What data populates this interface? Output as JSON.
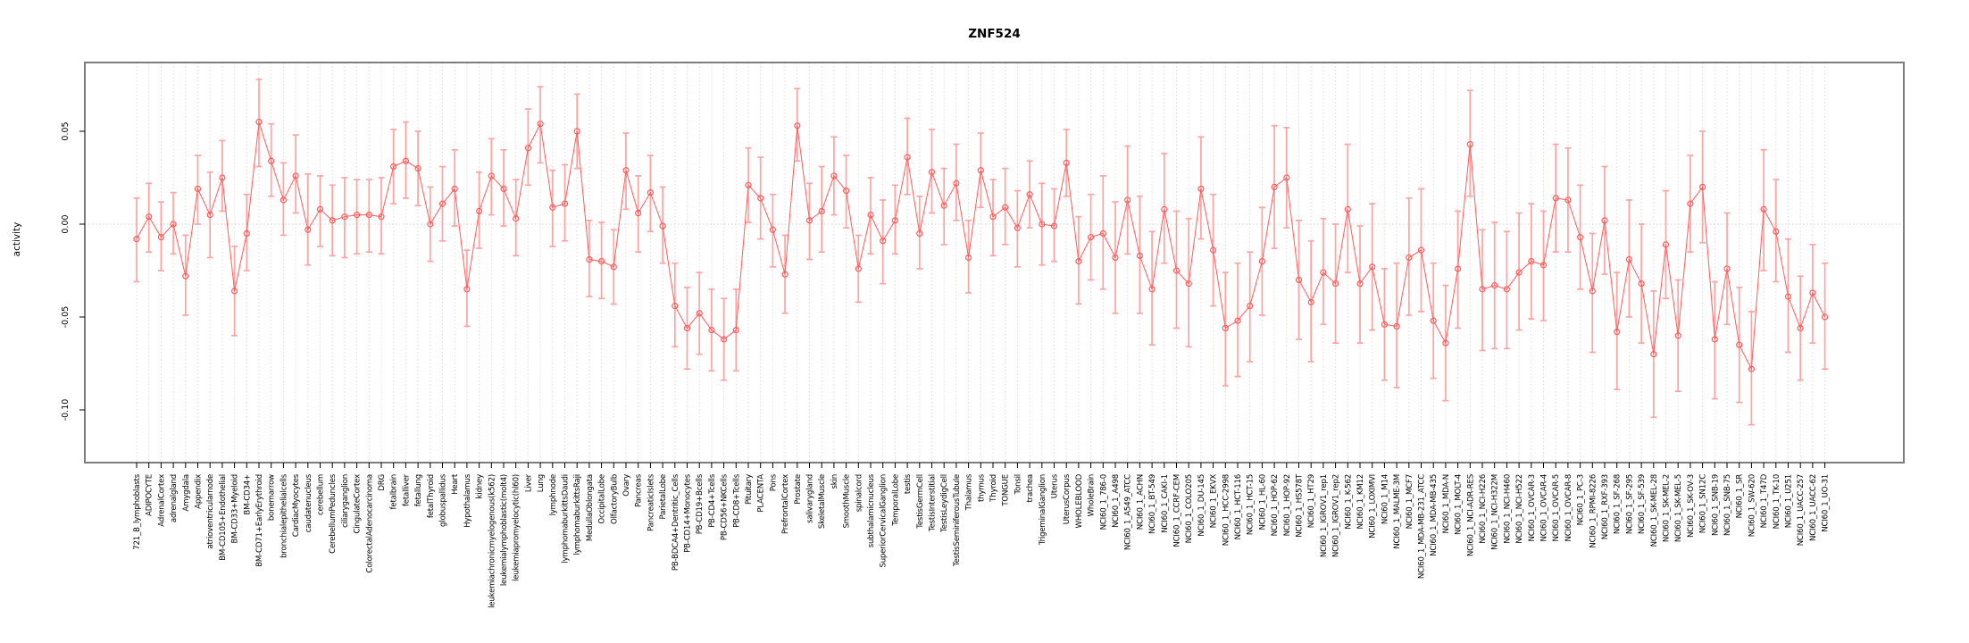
{
  "page": {
    "title": "ZNF524"
  },
  "chart_data": {
    "type": "line",
    "title": "ZNF524",
    "xlabel": "",
    "ylabel": "activity",
    "legend": "none",
    "grid": "vertical dotted line per category; horizontal dotted line at 0",
    "marker": "open-circle-with-error-bars",
    "ylim": [
      -0.128,
      0.087
    ],
    "yticks": [
      0.05,
      0.0,
      -0.05,
      -0.1
    ],
    "ytick_labels": [
      "0.05",
      "0.00",
      "-0.05",
      "-0.10"
    ],
    "colors": {
      "series": "#ff5b5b",
      "error_bars": "#ff9a9a",
      "grid": "#dcdcdc",
      "zero_line": "#cfcfcf",
      "box": "#7d7d7d",
      "tick": "#000000",
      "text": "#000000",
      "background": "#ffffff"
    },
    "categories": [
      "721_B_lymphoblasts",
      "ADIPOCYTE",
      "AdrenalCortex",
      "adrenalgland",
      "Amygdala",
      "Appendix",
      "atrioventricularnode",
      "BM-CD105+Endothelial",
      "BM-CD33+Myeloid",
      "BM-CD34+",
      "BM-CD71+EarlyErythroid",
      "bonemarrow",
      "bronchialepithelialcells",
      "CardiacMyocytes",
      "caudatenucleus",
      "cerebellum",
      "CerebellumPeduncles",
      "ciliaryganglion",
      "CingulateCortex",
      "ColorectalAdenocarcinoma",
      "DRG",
      "fetalbrain",
      "fetalliver",
      "fetallung",
      "fetalThyroid",
      "globuspallidus",
      "Heart",
      "Hypothalamus",
      "kidney",
      "leukemiachronicmyelogenous(k562)",
      "leukemialymphoblastic(molt4)",
      "leukemiapromyelocytic(hl60)",
      "Liver",
      "Lung",
      "lymphnode",
      "lymphomaburkittsDaudi",
      "lymphomaburkittsRaji",
      "MedullaOblongata",
      "OccipitalLobe",
      "OlfactoryBulb",
      "Ovary",
      "Pancreas",
      "PancreaticIslets",
      "ParietalLobe",
      "PB-BDCA4+Dentritic_Cells",
      "PB-CD14+Monocytes",
      "PB-CD19+Bcells",
      "PB-CD4+Tcells",
      "PB-CD56+NKCells",
      "PB-CD8+Tcells",
      "Pituitary",
      "PLACENTA",
      "Pons",
      "PrefrontalCortex",
      "Prostate",
      "salivarygland",
      "SkeletalMuscle",
      "skin",
      "SmoothMuscle",
      "spinalcord",
      "subthalamicnucleus",
      "SuperiorCervicalGanglion",
      "TemporalLobe",
      "testis",
      "TestisGermCell",
      "TestisInterstitial",
      "TestisLeydigCell",
      "TestisSeminiferousTubule",
      "Thalamus",
      "thymus",
      "Thyroid",
      "TONGUE",
      "Tonsil",
      "trachea",
      "TrigeminalGanglion",
      "Uterus",
      "UterusCorpus",
      "WHOLEBLOOD",
      "WholeBrain",
      "NCI60_1_786-0",
      "NCI60_1_A498",
      "NCI60_1_A549_ATCC",
      "NCI60_1_ACHN",
      "NCI60_1_BT-549",
      "NCI60_1_CAKI-1",
      "NCI60_1_CCRF-CEM",
      "NCI60_1_COLO205",
      "NCI60_1_DU-145",
      "NCI60_1_EKVX",
      "NCI60_1_HCC-2998",
      "NCI60_1_HCT-116",
      "NCI60_1_HCT-15",
      "NCI60_1_HL-60",
      "NCI60_1_HOP-62",
      "NCI60_1_HOP-92",
      "NCI60_1_HS578T",
      "NCI60_1_HT29",
      "NCI60_1_IGROV1_rep1",
      "NCI60_1_IGROV1_rep2",
      "NCI60_1_K-562",
      "NCI60_1_KM12",
      "NCI60_1_LOXIMVI",
      "NCI60_1_M14",
      "NCI60_1_MALME-3M",
      "NCI60_1_MCF7",
      "NCI60_1_MDA-MB-231_ATCC",
      "NCI60_1_MDA-MB-435",
      "NCI60_1_MDA-N",
      "NCI60_1_MOLT-4",
      "NCI60_1_NCI-ADR-RES",
      "NCI60_1_NCI-H226",
      "NCI60_1_NCI-H322M",
      "NCI60_1_NCI-H460",
      "NCI60_1_NCI-H522",
      "NCI60_1_OVCAR-3",
      "NCI60_1_OVCAR-4",
      "NCI60_1_OVCAR-5",
      "NCI60_1_OVCAR-8",
      "NCI60_1_PC-3",
      "NCI60_1_RPMI-8226",
      "NCI60_1_RXF-393",
      "NCI60_1_SF-268",
      "NCI60_1_SF-295",
      "NCI60_1_SF-539",
      "NCI60_1_SK-MEL-28",
      "NCI60_1_SK-MEL-2",
      "NCI60_1_SK-MEL-5",
      "NCI60_1_SK-OV-3",
      "NCI60_1_SN12C",
      "NCI60_1_SNB-19",
      "NCI60_1_SNB-75",
      "NCI60_1_SR",
      "NCI60_1_SW-620",
      "NCI60_1_T47D",
      "NCI60_1_TK-10",
      "NCI60_1_U251",
      "NCI60_1_UACC-257",
      "NCI60_1_UACC-62",
      "NCI60_1_UO-31"
    ],
    "series": [
      {
        "name": "activity",
        "values": [
          -0.008,
          0.004,
          -0.007,
          0.0,
          -0.028,
          0.019,
          0.005,
          0.025,
          -0.036,
          -0.005,
          0.055,
          0.034,
          0.013,
          0.026,
          -0.003,
          0.008,
          0.002,
          0.004,
          0.005,
          0.005,
          0.004,
          0.031,
          0.034,
          0.03,
          0.0,
          0.011,
          0.019,
          -0.035,
          0.007,
          0.026,
          0.019,
          0.003,
          0.041,
          0.054,
          0.009,
          0.011,
          0.05,
          -0.019,
          -0.02,
          -0.023,
          0.029,
          0.006,
          0.017,
          -0.001,
          -0.044,
          -0.056,
          -0.048,
          -0.057,
          -0.062,
          -0.057,
          0.021,
          0.014,
          -0.003,
          -0.027,
          0.053,
          0.002,
          0.007,
          0.026,
          0.018,
          -0.024,
          0.005,
          -0.009,
          0.002,
          0.036,
          -0.005,
          0.028,
          0.01,
          0.022,
          -0.018,
          0.029,
          0.004,
          0.009,
          -0.002,
          0.016,
          0.0,
          -0.001,
          0.033,
          -0.02,
          -0.007,
          -0.005,
          -0.018,
          0.013,
          -0.017,
          -0.035,
          0.008,
          -0.025,
          -0.032,
          0.019,
          -0.014,
          -0.056,
          -0.052,
          -0.044,
          -0.02,
          0.02,
          0.025,
          -0.03,
          -0.042,
          -0.026,
          -0.032,
          0.008,
          -0.032,
          -0.023,
          -0.054,
          -0.055,
          -0.018,
          -0.014,
          -0.052,
          -0.064,
          -0.024,
          0.043,
          -0.035,
          -0.033,
          -0.035,
          -0.026,
          -0.02,
          -0.022,
          0.014,
          0.013,
          -0.007,
          -0.036,
          0.002,
          -0.058,
          -0.019,
          -0.032,
          -0.07,
          -0.011,
          -0.06,
          0.011,
          0.02,
          -0.062,
          -0.024,
          -0.065,
          -0.078,
          0.008,
          -0.004,
          -0.039,
          -0.056,
          -0.037,
          -0.05
        ],
        "err_lo": [
          -0.031,
          -0.015,
          -0.025,
          -0.016,
          -0.049,
          0.0,
          -0.018,
          0.007,
          -0.06,
          -0.025,
          0.031,
          0.015,
          -0.006,
          0.006,
          -0.022,
          -0.012,
          -0.017,
          -0.018,
          -0.016,
          -0.015,
          -0.016,
          0.011,
          0.014,
          0.01,
          -0.02,
          -0.009,
          -0.001,
          -0.055,
          -0.013,
          0.005,
          -0.001,
          -0.017,
          0.021,
          0.033,
          -0.012,
          -0.009,
          0.03,
          -0.039,
          -0.04,
          -0.043,
          0.008,
          -0.015,
          -0.004,
          -0.021,
          -0.066,
          -0.078,
          -0.07,
          -0.079,
          -0.084,
          -0.079,
          0.001,
          -0.008,
          -0.023,
          -0.048,
          0.034,
          -0.019,
          -0.015,
          0.005,
          -0.002,
          -0.042,
          -0.016,
          -0.032,
          -0.016,
          0.016,
          -0.024,
          0.006,
          -0.011,
          0.002,
          -0.037,
          0.009,
          -0.017,
          -0.011,
          -0.023,
          -0.002,
          -0.022,
          -0.02,
          0.015,
          -0.043,
          -0.03,
          -0.035,
          -0.048,
          -0.016,
          -0.048,
          -0.065,
          -0.021,
          -0.056,
          -0.066,
          -0.008,
          -0.044,
          -0.087,
          -0.082,
          -0.074,
          -0.049,
          -0.013,
          -0.002,
          -0.062,
          -0.074,
          -0.054,
          -0.064,
          -0.026,
          -0.064,
          -0.057,
          -0.084,
          -0.088,
          -0.049,
          -0.047,
          -0.083,
          -0.095,
          -0.056,
          0.015,
          -0.068,
          -0.067,
          -0.067,
          -0.057,
          -0.051,
          -0.052,
          -0.015,
          -0.015,
          -0.035,
          -0.069,
          -0.027,
          -0.089,
          -0.05,
          -0.064,
          -0.104,
          -0.04,
          -0.09,
          -0.015,
          -0.01,
          -0.094,
          -0.054,
          -0.096,
          -0.108,
          -0.025,
          -0.031,
          -0.069,
          -0.084,
          -0.064,
          -0.078
        ],
        "err_hi": [
          0.014,
          0.022,
          0.012,
          0.017,
          -0.006,
          0.037,
          0.028,
          0.045,
          -0.012,
          0.016,
          0.078,
          0.054,
          0.033,
          0.048,
          0.027,
          0.026,
          0.021,
          0.025,
          0.024,
          0.024,
          0.025,
          0.051,
          0.055,
          0.05,
          0.02,
          0.031,
          0.04,
          -0.014,
          0.028,
          0.046,
          0.04,
          0.024,
          0.062,
          0.074,
          0.029,
          0.032,
          0.07,
          0.002,
          0.001,
          -0.003,
          0.049,
          0.026,
          0.037,
          0.02,
          -0.021,
          -0.034,
          -0.026,
          -0.035,
          -0.04,
          -0.035,
          0.041,
          0.036,
          0.016,
          -0.006,
          0.073,
          0.022,
          0.031,
          0.047,
          0.037,
          -0.006,
          0.025,
          0.013,
          0.021,
          0.057,
          0.015,
          0.051,
          0.03,
          0.043,
          0.002,
          0.049,
          0.024,
          0.03,
          0.018,
          0.034,
          0.022,
          0.019,
          0.051,
          0.004,
          0.016,
          0.026,
          0.012,
          0.042,
          0.015,
          -0.004,
          0.038,
          0.007,
          0.003,
          0.047,
          0.016,
          -0.026,
          -0.021,
          -0.015,
          0.009,
          0.053,
          0.052,
          0.002,
          -0.009,
          0.003,
          0.0,
          0.043,
          -0.001,
          0.011,
          -0.024,
          -0.021,
          0.014,
          0.019,
          -0.021,
          -0.033,
          0.007,
          0.072,
          -0.003,
          0.001,
          -0.004,
          0.006,
          0.011,
          0.007,
          0.043,
          0.041,
          0.021,
          -0.005,
          0.031,
          -0.026,
          0.013,
          0.0,
          -0.036,
          0.018,
          -0.03,
          0.037,
          0.05,
          -0.031,
          0.006,
          -0.034,
          -0.047,
          0.04,
          0.024,
          -0.008,
          -0.028,
          -0.011,
          -0.021
        ]
      }
    ]
  }
}
